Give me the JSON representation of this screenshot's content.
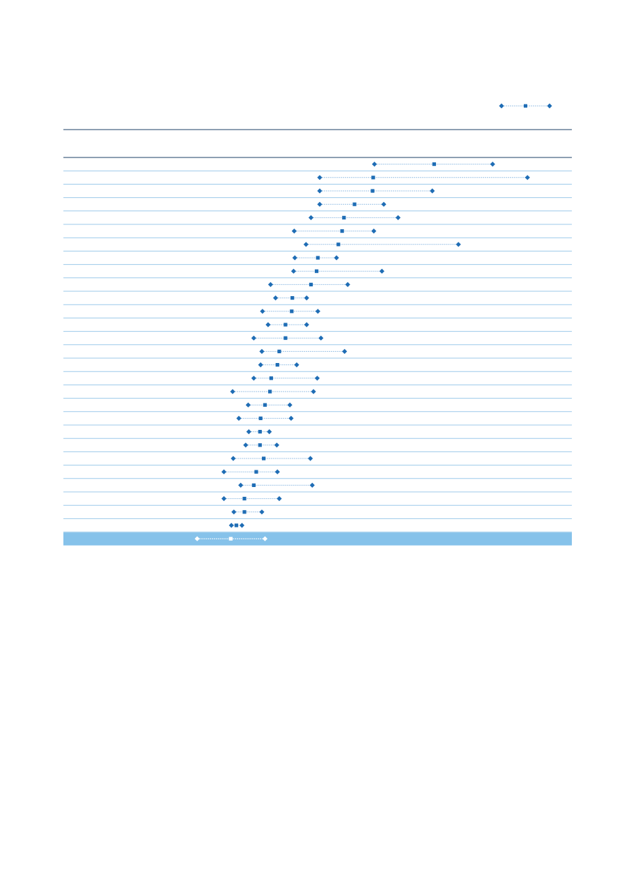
{
  "colors": {
    "marker": "#1f6db5",
    "connector": "#9cc3e6",
    "row_divider": "#9cc9ea",
    "header_rule": "#1b3f66",
    "highlight_band": "#86c2ea",
    "highlight_marker": "#ffffff"
  },
  "chart_data": {
    "type": "dot-range",
    "title": "",
    "xlabel": "",
    "ylabel": "",
    "legend": {
      "placement": "top-right",
      "entries": [
        "",
        "",
        ""
      ]
    },
    "xlim": [
      0,
      100
    ],
    "grid": false,
    "highlight_row": 28,
    "rows": [
      {
        "low": 60.2,
        "mid": 69.8,
        "high": 79.2
      },
      {
        "low": 51.4,
        "mid": 60.0,
        "high": 84.8
      },
      {
        "low": 51.4,
        "mid": 59.9,
        "high": 69.5
      },
      {
        "low": 51.4,
        "mid": 57.0,
        "high": 61.7
      },
      {
        "low": 50.0,
        "mid": 55.3,
        "high": 64.0
      },
      {
        "low": 47.3,
        "mid": 55.0,
        "high": 60.1
      },
      {
        "low": 49.2,
        "mid": 54.4,
        "high": 73.7
      },
      {
        "low": 47.4,
        "mid": 51.1,
        "high": 54.1
      },
      {
        "low": 47.2,
        "mid": 50.9,
        "high": 61.4
      },
      {
        "low": 43.5,
        "mid": 50.0,
        "high": 55.9
      },
      {
        "low": 44.3,
        "mid": 47.0,
        "high": 49.3
      },
      {
        "low": 42.2,
        "mid": 46.9,
        "high": 51.1
      },
      {
        "low": 43.1,
        "mid": 45.9,
        "high": 49.3
      },
      {
        "low": 40.8,
        "mid": 45.9,
        "high": 51.6
      },
      {
        "low": 42.1,
        "mid": 44.9,
        "high": 55.4
      },
      {
        "low": 41.9,
        "mid": 44.6,
        "high": 47.7
      },
      {
        "low": 40.8,
        "mid": 43.6,
        "high": 51.0
      },
      {
        "low": 37.4,
        "mid": 43.4,
        "high": 50.4
      },
      {
        "low": 39.9,
        "mid": 42.6,
        "high": 46.6
      },
      {
        "low": 38.4,
        "mid": 41.9,
        "high": 46.8
      },
      {
        "low": 40.0,
        "mid": 41.8,
        "high": 43.3
      },
      {
        "low": 39.5,
        "mid": 41.8,
        "high": 44.5
      },
      {
        "low": 37.5,
        "mid": 42.4,
        "high": 49.9
      },
      {
        "low": 36.0,
        "mid": 41.2,
        "high": 44.6
      },
      {
        "low": 38.7,
        "mid": 40.8,
        "high": 50.2
      },
      {
        "low": 36.0,
        "mid": 39.3,
        "high": 44.9
      },
      {
        "low": 37.6,
        "mid": 39.3,
        "high": 42.1
      },
      {
        "low": 37.2,
        "mid": 38.0,
        "high": 38.9
      },
      {
        "low": 31.7,
        "mid": 37.1,
        "high": 42.6
      }
    ]
  }
}
